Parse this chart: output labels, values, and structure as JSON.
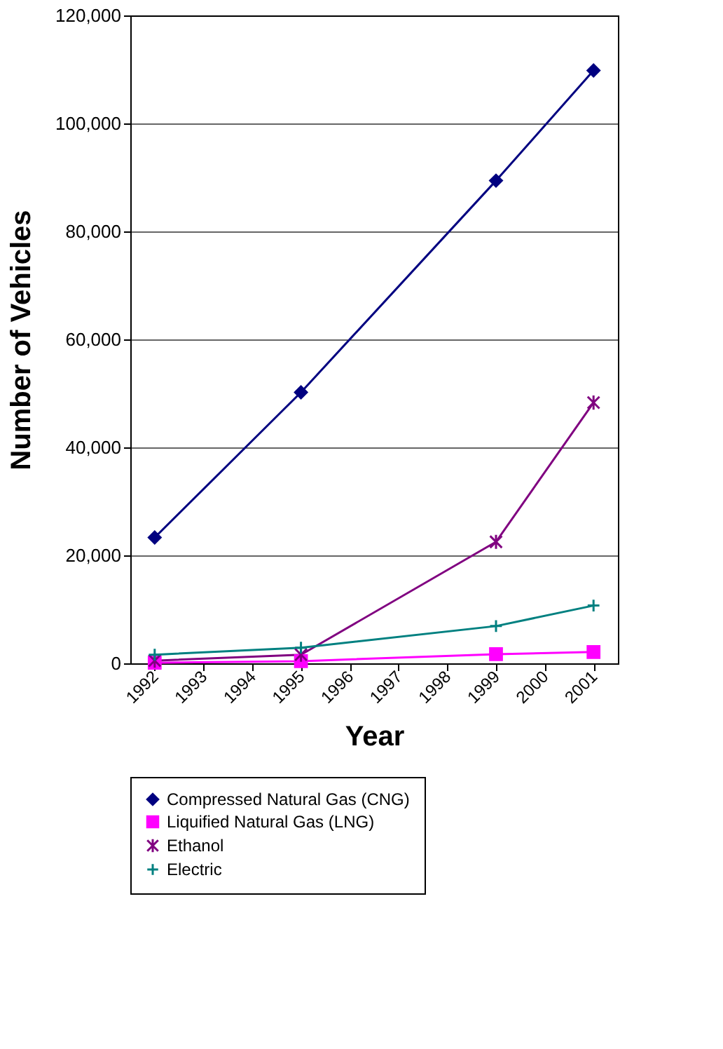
{
  "chart_data": {
    "type": "line",
    "xlabel": "Year",
    "ylabel": "Number of Vehicles",
    "categories": [
      "1992",
      "1993",
      "1994",
      "1995",
      "1996",
      "1997",
      "1998",
      "1999",
      "2000",
      "2001"
    ],
    "series": [
      {
        "name": "Compressed Natural Gas (CNG)",
        "color": "#000080",
        "marker": "diamond",
        "values": [
          23300,
          null,
          null,
          50200,
          null,
          null,
          null,
          89400,
          null,
          109800
        ]
      },
      {
        "name": "Liquified Natural Gas (LNG)",
        "color": "#ff00ff",
        "marker": "square",
        "values": [
          100,
          null,
          null,
          400,
          null,
          null,
          null,
          1700,
          null,
          2100
        ]
      },
      {
        "name": "Ethanol",
        "color": "#800080",
        "marker": "cross",
        "values": [
          500,
          null,
          null,
          1600,
          null,
          null,
          null,
          22500,
          null,
          48300
        ]
      },
      {
        "name": "Electric",
        "color": "#008080",
        "marker": "cross",
        "values": [
          1600,
          null,
          null,
          2900,
          null,
          null,
          null,
          6900,
          null,
          10700
        ]
      }
    ],
    "ylim": [
      0,
      120000
    ],
    "yticks": [
      0,
      {
        "value": 20000,
        "label": "20,000"
      },
      {
        "value": 40000,
        "label": "40,000"
      },
      {
        "value": 60000,
        "label": "60,000"
      },
      {
        "value": 80000,
        "label": "80,000"
      },
      {
        "value": 100000,
        "label": "100,000"
      },
      {
        "value": 120000,
        "label": "120,000"
      }
    ],
    "grid": "y",
    "legend": "bottom"
  }
}
